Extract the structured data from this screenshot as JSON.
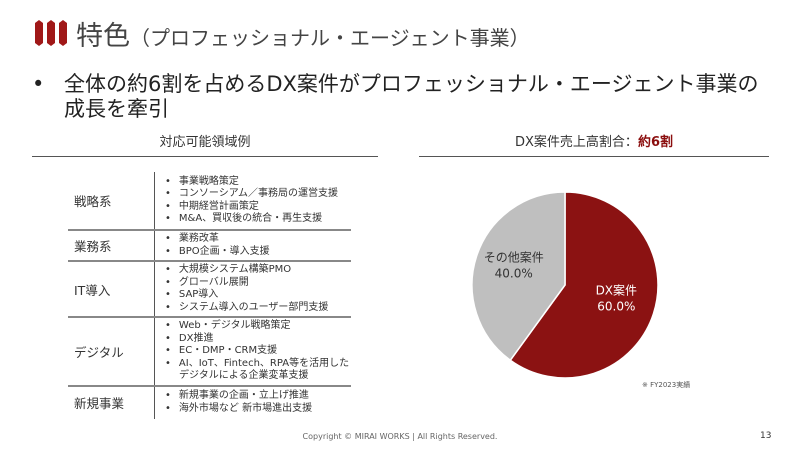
{
  "header": {
    "title": "特色",
    "subtitle": "（プロフェッショナル・エージェント事業）"
  },
  "bullet": {
    "dot": "•",
    "text": "全体の約6割を占めるDX案件がプロフェッショナル・エージェント事業の成長を牽引"
  },
  "left": {
    "heading": "対応可能領域例",
    "rows": [
      {
        "label": "戦略系",
        "items": [
          "事業戦略策定",
          "コンソーシアム／事務局の運営支援",
          "中期経営計画策定",
          "M&A、買収後の統合・再生支援"
        ]
      },
      {
        "label": "業務系",
        "items": [
          "業務改革",
          "BPO企画・導入支援"
        ]
      },
      {
        "label": "IT導入",
        "items": [
          "大規模システム構築PMO",
          "グローバル展開",
          "SAP導入",
          "システム導入のユーザー部門支援"
        ]
      },
      {
        "label": "デジタル",
        "items": [
          "Web・デジタル戦略策定",
          "DX推進",
          "EC・DMP・CRM支援",
          "AI、IoT、Fintech、RPA等を活用した",
          "デジタルによる企業変革支援"
        ]
      },
      {
        "label": "新規事業",
        "items": [
          "新規事業の企画・立上げ推進",
          "海外市場など 新市場進出支援"
        ]
      }
    ]
  },
  "right": {
    "heading": "DX案件売上高割合：",
    "heading_value": "約6割",
    "note": "※ FY2023実績"
  },
  "chart_data": {
    "type": "pie",
    "title": "DX案件売上高割合：約6割",
    "slices": [
      {
        "label": "DX案件",
        "value": 60.0,
        "display": "60.0%",
        "color": "#8b1212"
      },
      {
        "label": "その他案件",
        "value": 40.0,
        "display": "40.0%",
        "color": "#bfbfbf"
      }
    ]
  },
  "footer": {
    "copyright": "Copyright © MIRAI WORKS | All Rights Reserved.",
    "page": "13"
  },
  "colors": {
    "accent": "#8b1212"
  }
}
